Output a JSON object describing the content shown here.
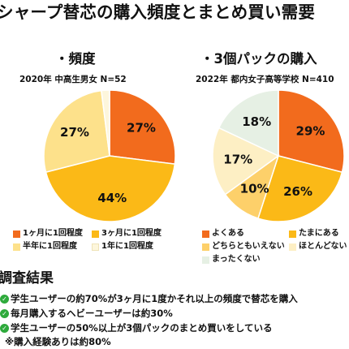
{
  "headline": "シャープ替芯の購入頻度とまとめ買い需要",
  "chart_data": [
    {
      "type": "pie",
      "title": "・頻度",
      "subtitle": "2020年 中高生男女 N=52",
      "slices": [
        {
          "label": "1ヶ月に1回程度",
          "value": 27,
          "color": "#f26b1d"
        },
        {
          "label": "3ヶ月に1回程度",
          "value": 44,
          "color": "#fbb917"
        },
        {
          "label": "半年に1回程度",
          "value": 27,
          "color": "#fde18b"
        },
        {
          "label": "1年に1回程度",
          "value": 2,
          "color": "#fdf6dc"
        }
      ],
      "data_labels": [
        "27%",
        "44%",
        "27%",
        ""
      ],
      "legend_position": "bottom"
    },
    {
      "type": "pie",
      "title": "・3個パックの購入",
      "subtitle": "2022年 都内女子高等学校 N=410",
      "slices": [
        {
          "label": "よくある",
          "value": 29,
          "color": "#f26b1d"
        },
        {
          "label": "たまにある",
          "value": 26,
          "color": "#fbb917"
        },
        {
          "label": "どちらともいえない",
          "value": 10,
          "color": "#fdd06a"
        },
        {
          "label": "ほとんどない",
          "value": 17,
          "color": "#fdefc4"
        },
        {
          "label": "まったくない",
          "value": 18,
          "color": "#e6f0e4"
        }
      ],
      "data_labels": [
        "29%",
        "26%",
        "10%",
        "17%",
        "18%"
      ],
      "legend_position": "bottom"
    }
  ],
  "results": {
    "title": "調査結果",
    "findings": [
      "学生ユーザーの約70%が3ヶ月に1度かそれ以上の頻度で替芯を購入",
      "毎月購入するヘビーユーザーは約30%",
      "学生ユーザーの50%以上が3個パックのまとめ買いをしている"
    ],
    "note": "※購入経験ありは約80%"
  }
}
